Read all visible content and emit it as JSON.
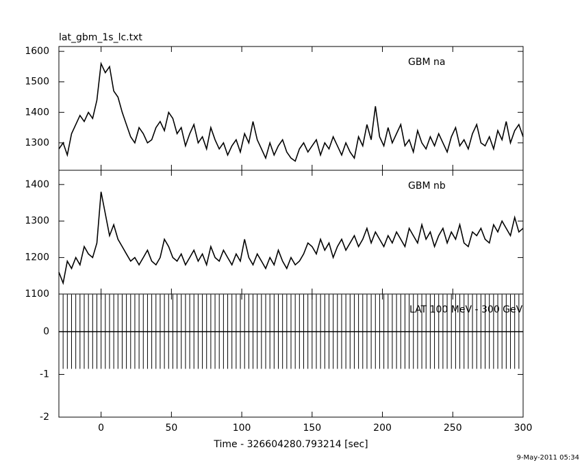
{
  "chart_data": {
    "type": "line",
    "title": "lat_gbm_1s_lc.txt",
    "x_label": "Time - 326604280.793214 [sec]",
    "footer": "9-May-2011 05:34",
    "xlim": [
      -30,
      300
    ],
    "xticks": [
      0,
      50,
      100,
      150,
      200,
      250,
      300
    ],
    "x": [
      -30,
      -27,
      -24,
      -21,
      -18,
      -15,
      -12,
      -9,
      -6,
      -3,
      0,
      3,
      6,
      9,
      12,
      15,
      18,
      21,
      24,
      27,
      30,
      33,
      36,
      39,
      42,
      45,
      48,
      51,
      54,
      57,
      60,
      63,
      66,
      69,
      72,
      75,
      78,
      81,
      84,
      87,
      90,
      93,
      96,
      99,
      102,
      105,
      108,
      111,
      114,
      117,
      120,
      123,
      126,
      129,
      132,
      135,
      138,
      141,
      144,
      147,
      150,
      153,
      156,
      159,
      162,
      165,
      168,
      171,
      174,
      177,
      180,
      183,
      186,
      189,
      192,
      195,
      198,
      201,
      204,
      207,
      210,
      213,
      216,
      219,
      222,
      225,
      228,
      231,
      234,
      237,
      240,
      243,
      246,
      249,
      252,
      255,
      258,
      261,
      264,
      267,
      270,
      273,
      276,
      279,
      282,
      285,
      288,
      291,
      294,
      297,
      300
    ],
    "panels": [
      {
        "name": "GBM na",
        "ylim": [
          1210,
          1616
        ],
        "yticks": [
          1300,
          1400,
          1500,
          1600
        ],
        "values": [
          1280,
          1300,
          1260,
          1330,
          1360,
          1390,
          1370,
          1400,
          1380,
          1440,
          1560,
          1530,
          1550,
          1470,
          1450,
          1400,
          1360,
          1320,
          1300,
          1350,
          1330,
          1300,
          1310,
          1350,
          1370,
          1340,
          1400,
          1380,
          1330,
          1350,
          1290,
          1330,
          1360,
          1300,
          1320,
          1280,
          1350,
          1310,
          1280,
          1300,
          1260,
          1290,
          1310,
          1270,
          1330,
          1300,
          1370,
          1310,
          1280,
          1250,
          1300,
          1260,
          1290,
          1310,
          1270,
          1250,
          1240,
          1280,
          1300,
          1270,
          1290,
          1310,
          1260,
          1300,
          1280,
          1320,
          1290,
          1260,
          1300,
          1270,
          1250,
          1320,
          1290,
          1360,
          1310,
          1420,
          1320,
          1290,
          1350,
          1300,
          1330,
          1360,
          1290,
          1310,
          1270,
          1340,
          1300,
          1280,
          1320,
          1290,
          1330,
          1300,
          1270,
          1320,
          1350,
          1290,
          1310,
          1280,
          1330,
          1360,
          1300,
          1290,
          1320,
          1280,
          1340,
          1310,
          1370,
          1300,
          1340,
          1360,
          1320
        ]
      },
      {
        "name": "GBM nb",
        "ylim": [
          1100,
          1439
        ],
        "yticks": [
          1100,
          1200,
          1300,
          1400
        ],
        "values": [
          1160,
          1130,
          1190,
          1170,
          1200,
          1180,
          1230,
          1210,
          1200,
          1240,
          1380,
          1320,
          1260,
          1290,
          1250,
          1230,
          1210,
          1190,
          1200,
          1180,
          1200,
          1220,
          1190,
          1180,
          1200,
          1250,
          1230,
          1200,
          1190,
          1210,
          1180,
          1200,
          1220,
          1190,
          1210,
          1180,
          1230,
          1200,
          1190,
          1220,
          1200,
          1180,
          1210,
          1190,
          1250,
          1200,
          1180,
          1210,
          1190,
          1170,
          1200,
          1180,
          1220,
          1190,
          1170,
          1200,
          1180,
          1190,
          1210,
          1240,
          1230,
          1210,
          1250,
          1220,
          1240,
          1200,
          1230,
          1250,
          1220,
          1240,
          1260,
          1230,
          1250,
          1280,
          1240,
          1270,
          1250,
          1230,
          1260,
          1240,
          1270,
          1250,
          1230,
          1280,
          1260,
          1240,
          1290,
          1250,
          1270,
          1230,
          1260,
          1280,
          1240,
          1270,
          1250,
          1290,
          1240,
          1230,
          1270,
          1260,
          1280,
          1250,
          1240,
          1290,
          1270,
          1300,
          1280,
          1260,
          1310,
          1270,
          1280
        ]
      },
      {
        "name": "LAT 100 MeV - 300 GeV",
        "ylim": [
          -2,
          0.88
        ],
        "yticks": [
          -2,
          -1,
          0
        ],
        "error": 0.87,
        "values": [
          0,
          0,
          0,
          0,
          0,
          0,
          0,
          0,
          0,
          0,
          0,
          0,
          0,
          0,
          0,
          0,
          0,
          0,
          0,
          0,
          0,
          0,
          0,
          0,
          0,
          0,
          0,
          0,
          0,
          0,
          0,
          0,
          0,
          0,
          0,
          0,
          0,
          0,
          0,
          0,
          0,
          0,
          0,
          0,
          0,
          0,
          0,
          0,
          0,
          0,
          0,
          0,
          0,
          0,
          0,
          0,
          0,
          0,
          0,
          0,
          0,
          0,
          0,
          0,
          0,
          0,
          0,
          0,
          0,
          0,
          0,
          0,
          0,
          0,
          0,
          0,
          0,
          0,
          0,
          0,
          0,
          0,
          0,
          0,
          0,
          0,
          0,
          0,
          0,
          0,
          0,
          0,
          0,
          0,
          0,
          0,
          0,
          0,
          0,
          0,
          0,
          0,
          0,
          0,
          0,
          0,
          0,
          0,
          0,
          0,
          0
        ]
      }
    ]
  }
}
